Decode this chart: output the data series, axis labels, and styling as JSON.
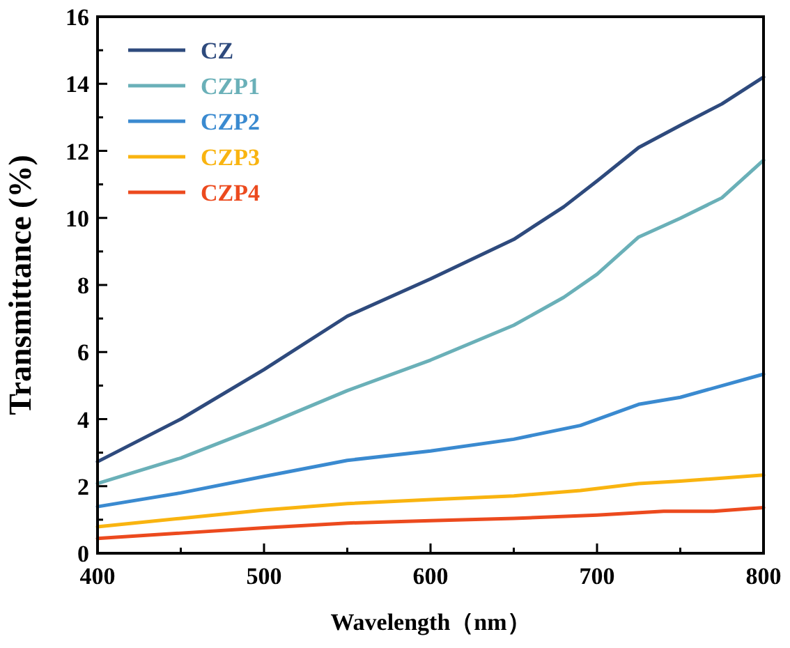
{
  "chart_data": {
    "type": "line",
    "xlabel": "Wavelength（nm）",
    "ylabel": "Transmittance (%)",
    "xlim": [
      400,
      800
    ],
    "ylim": [
      0,
      16
    ],
    "xticks": [
      400,
      {
        "value": 450,
        "label": null
      },
      500,
      {
        "value": 550,
        "label": null
      },
      600,
      {
        "value": 650,
        "label": null
      },
      700,
      {
        "value": 750,
        "label": null
      },
      800
    ],
    "yticks": [
      0,
      {
        "value": 1,
        "label": null
      },
      2,
      {
        "value": 3,
        "label": null
      },
      4,
      {
        "value": 5,
        "label": null
      },
      6,
      {
        "value": 7,
        "label": null
      },
      8,
      {
        "value": 9,
        "label": null
      },
      10,
      {
        "value": 11,
        "label": null
      },
      12,
      {
        "value": 13,
        "label": null
      },
      14,
      {
        "value": 15,
        "label": null
      },
      16
    ],
    "grid": false,
    "legend": "top left",
    "marker": "none",
    "line_style": "solid",
    "series": [
      {
        "name": "CZ",
        "color": "#2e4a7d",
        "x": [
          400,
          450,
          500,
          550,
          600,
          650,
          680,
          700,
          725,
          750,
          775,
          800
        ],
        "values": [
          2.73,
          4.0,
          5.48,
          7.07,
          8.18,
          9.36,
          10.33,
          11.1,
          12.1,
          12.76,
          13.4,
          14.2
        ]
      },
      {
        "name": "CZP1",
        "color": "#6ab0b8",
        "x": [
          400,
          450,
          500,
          550,
          600,
          650,
          680,
          700,
          725,
          750,
          775,
          800
        ],
        "values": [
          2.08,
          2.84,
          3.81,
          4.85,
          5.76,
          6.8,
          7.63,
          8.32,
          9.43,
          9.99,
          10.6,
          11.72
        ]
      },
      {
        "name": "CZP2",
        "color": "#3a8ad0",
        "x": [
          400,
          450,
          500,
          550,
          600,
          650,
          690,
          725,
          750,
          800
        ],
        "values": [
          1.39,
          1.8,
          2.29,
          2.77,
          3.05,
          3.4,
          3.81,
          4.44,
          4.65,
          5.34
        ]
      },
      {
        "name": "CZP3",
        "color": "#f9b410",
        "x": [
          400,
          450,
          500,
          550,
          600,
          650,
          690,
          725,
          750,
          800
        ],
        "values": [
          0.79,
          1.04,
          1.29,
          1.48,
          1.6,
          1.71,
          1.87,
          2.08,
          2.15,
          2.33
        ]
      },
      {
        "name": "CZP4",
        "color": "#ec4a1e",
        "x": [
          400,
          450,
          500,
          550,
          600,
          650,
          700,
          740,
          770,
          800
        ],
        "values": [
          0.44,
          0.6,
          0.76,
          0.9,
          0.97,
          1.04,
          1.14,
          1.25,
          1.25,
          1.36
        ]
      }
    ]
  }
}
